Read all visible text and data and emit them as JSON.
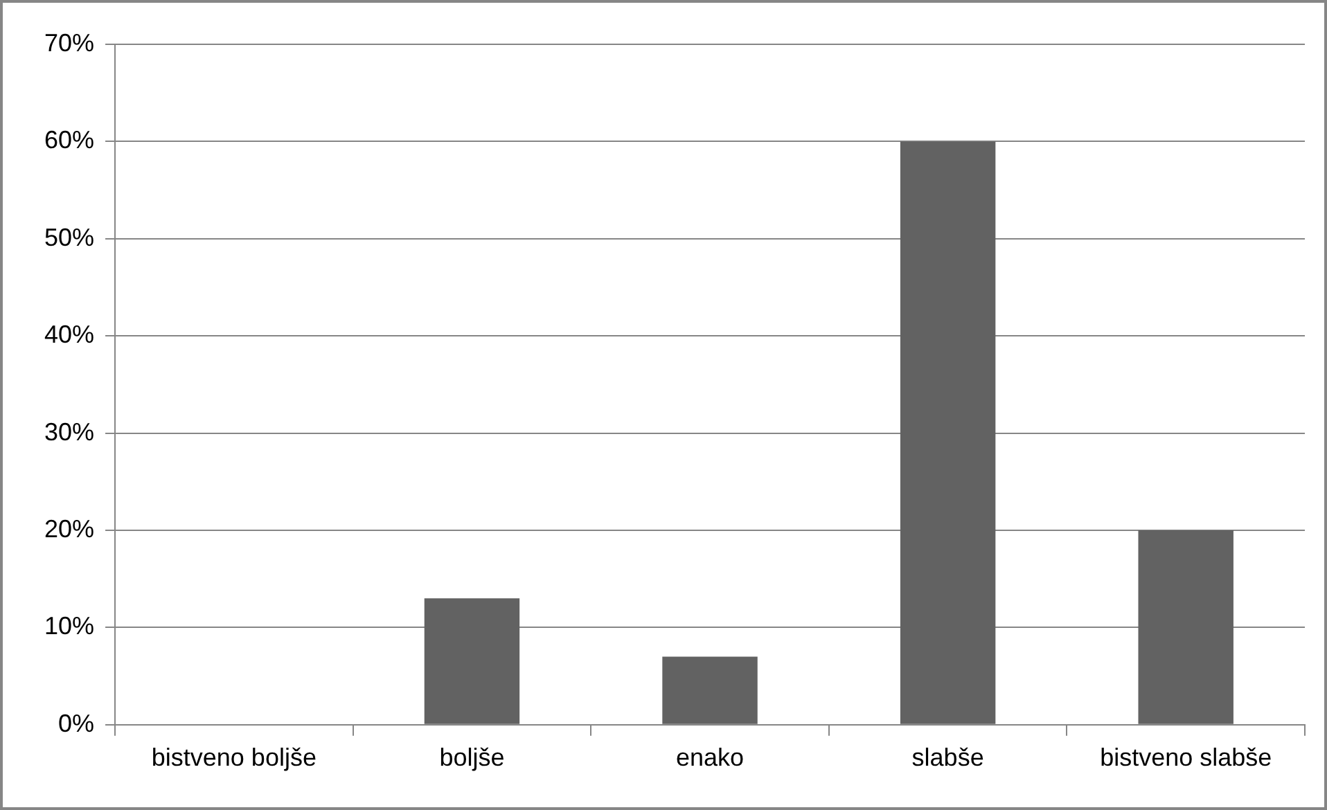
{
  "chart_data": {
    "type": "bar",
    "categories": [
      "bistveno boljše",
      "boljše",
      "enako",
      "slabše",
      "bistveno slabše"
    ],
    "values": [
      0,
      13,
      7,
      60,
      20
    ],
    "color": "#626262",
    "ylim": [
      0,
      70
    ],
    "yticks": [
      {
        "value": 0,
        "label": "0%"
      },
      {
        "value": 10,
        "label": "10%"
      },
      {
        "value": 20,
        "label": "20%"
      },
      {
        "value": 30,
        "label": "30%"
      },
      {
        "value": 40,
        "label": "40%"
      },
      {
        "value": 50,
        "label": "50%"
      },
      {
        "value": 60,
        "label": "60%"
      },
      {
        "value": 70,
        "label": "70%"
      }
    ],
    "grid": "y",
    "legend": false
  }
}
